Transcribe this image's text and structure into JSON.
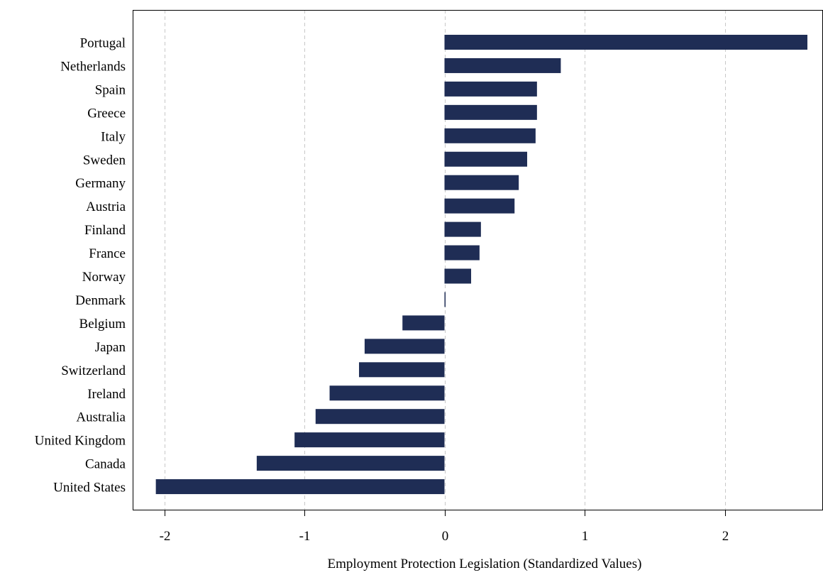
{
  "chart_data": {
    "type": "bar",
    "orientation": "horizontal",
    "title": "",
    "xlabel": "Employment Protection Legislation (Standardized Values)",
    "ylabel": "",
    "xlim": [
      -2.23,
      2.6
    ],
    "xticks": [
      -2,
      -1,
      0,
      1,
      2
    ],
    "xtick_labels": [
      "-2",
      "-1",
      "0",
      "1",
      "2"
    ],
    "grid": "vertical dashed",
    "legend": "none",
    "bar_color": "#1f2d55",
    "grid_color": "#c8c8c8",
    "categories": [
      "Portugal",
      "Netherlands",
      "Spain",
      "Greece",
      "Italy",
      "Sweden",
      "Germany",
      "Austria",
      "Finland",
      "France",
      "Norway",
      "Denmark",
      "Belgium",
      "Japan",
      "Switzerland",
      "Ireland",
      "Australia",
      "United Kingdom",
      "Canada",
      "United States"
    ],
    "values": [
      2.59,
      0.83,
      0.66,
      0.66,
      0.65,
      0.59,
      0.53,
      0.5,
      0.26,
      0.25,
      0.19,
      0.005,
      -0.3,
      -0.57,
      -0.61,
      -0.82,
      -0.92,
      -1.07,
      -1.34,
      -2.06
    ]
  }
}
